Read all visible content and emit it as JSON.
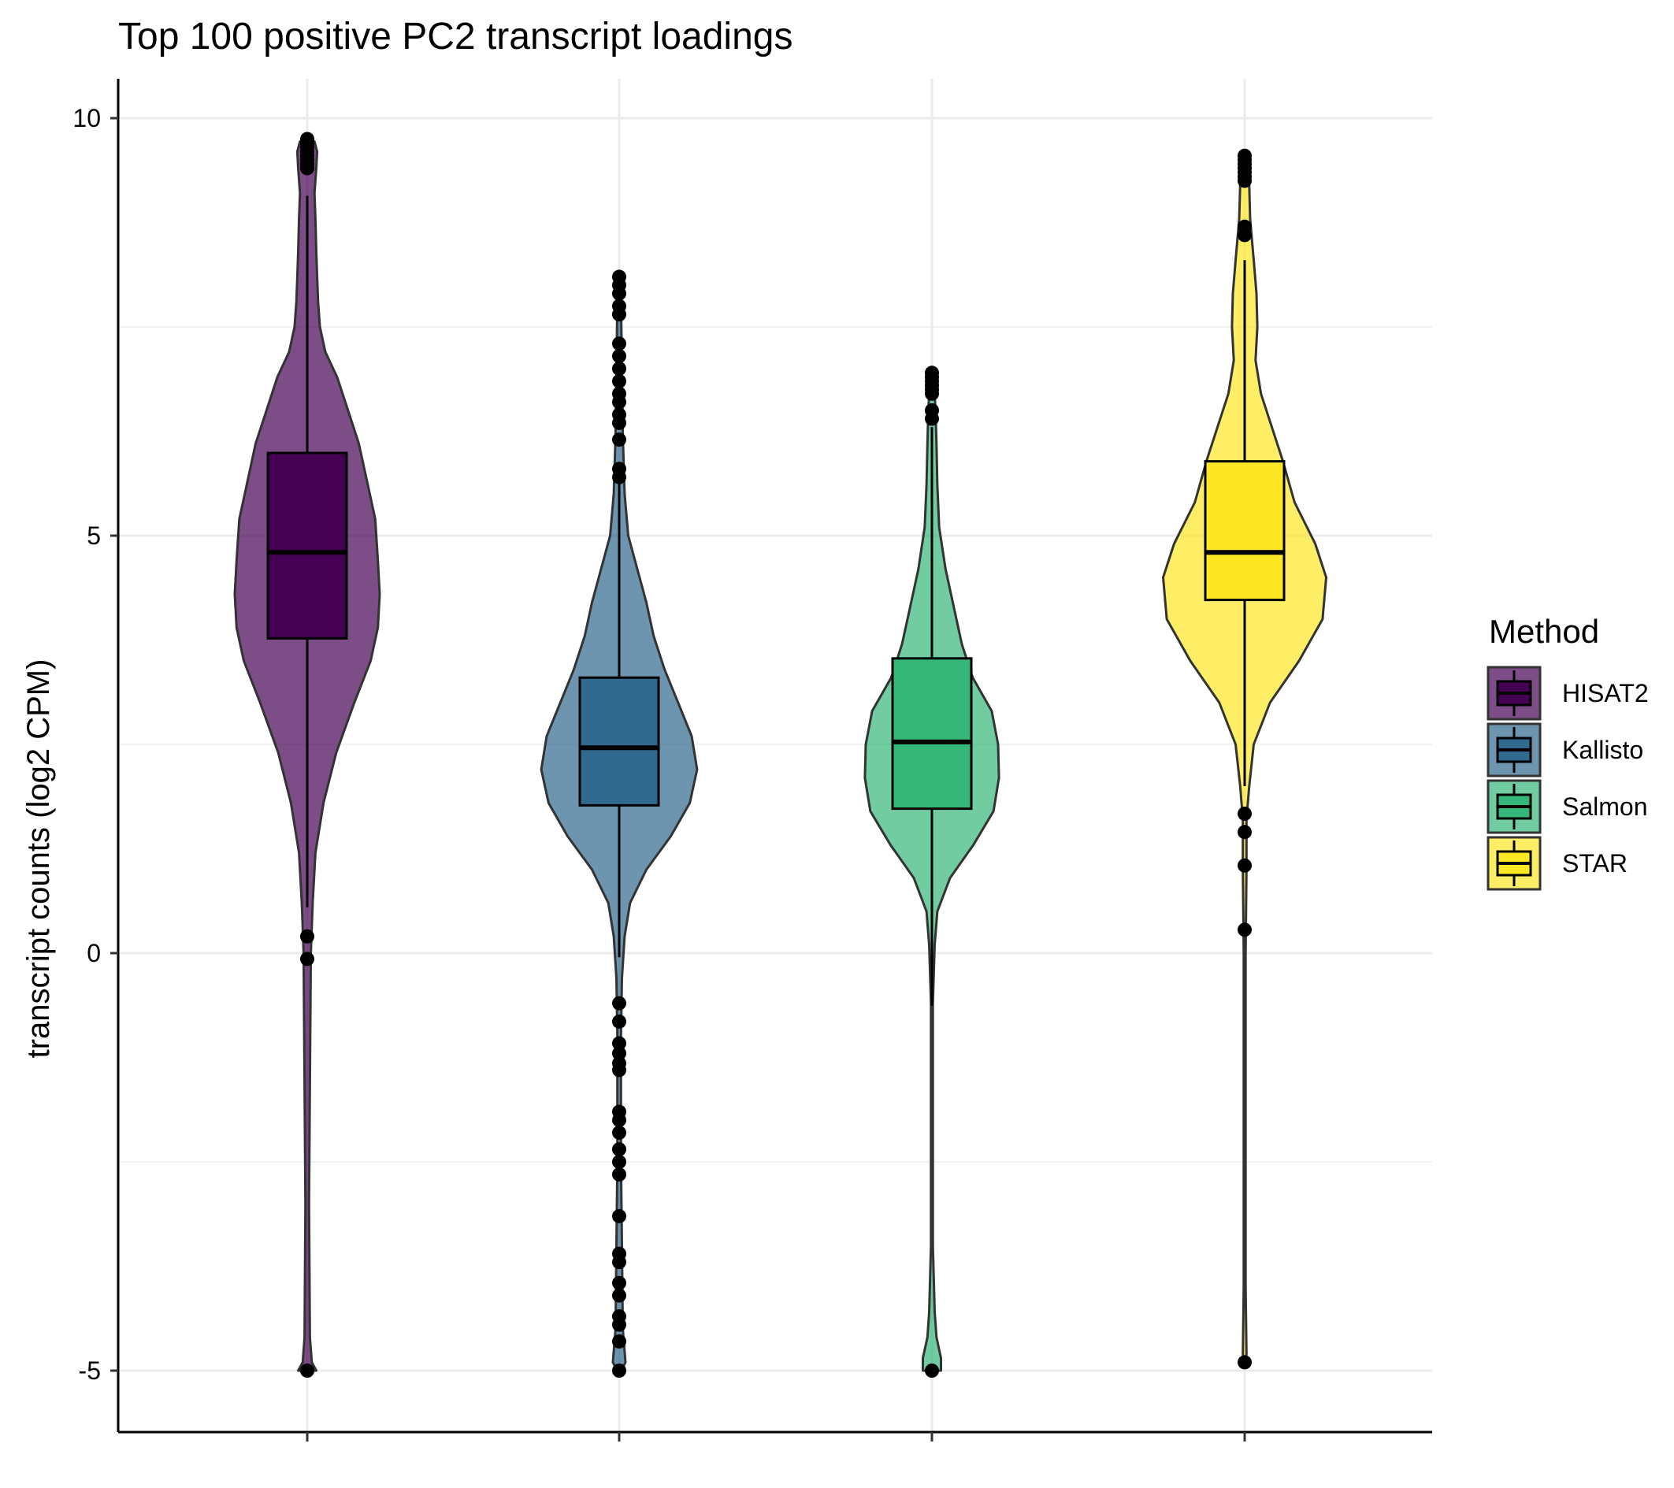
{
  "chart_data": {
    "type": "violin",
    "title": "Top 100 positive PC2 transcript loadings",
    "xlabel": "",
    "ylabel": "transcript counts (log2 CPM)",
    "ylim": [
      -5.8,
      10.5
    ],
    "yticks": [
      -5,
      0,
      5,
      10
    ],
    "ytick_labels": [
      "-5",
      "0",
      "5",
      "10"
    ],
    "grid": true,
    "legend": {
      "title": "Method",
      "position": "right",
      "entries": [
        "HISAT2",
        "Kallisto",
        "Salmon",
        "STAR"
      ]
    },
    "series": [
      {
        "name": "HISAT2",
        "fill": "#440154",
        "box": {
          "q1": 3.77,
          "median": 4.8,
          "q3": 5.99,
          "whisker_low": 0.55,
          "whisker_high": 9.07
        },
        "outliers": [
          9.75,
          9.7,
          9.65,
          9.6,
          9.55,
          9.5,
          9.45,
          9.4,
          0.2,
          -0.07,
          -5.0
        ],
        "density": [
          [
            -5.0,
            0.1
          ],
          [
            -4.9,
            0.05
          ],
          [
            -4.6,
            0.03
          ],
          [
            -3.0,
            0.02
          ],
          [
            0.0,
            0.04
          ],
          [
            0.6,
            0.06
          ],
          [
            1.2,
            0.09
          ],
          [
            1.8,
            0.18
          ],
          [
            2.4,
            0.32
          ],
          [
            3.0,
            0.52
          ],
          [
            3.5,
            0.7
          ],
          [
            3.9,
            0.78
          ],
          [
            4.3,
            0.8
          ],
          [
            4.7,
            0.78
          ],
          [
            5.2,
            0.75
          ],
          [
            5.7,
            0.65
          ],
          [
            6.1,
            0.57
          ],
          [
            6.5,
            0.45
          ],
          [
            6.9,
            0.33
          ],
          [
            7.2,
            0.2
          ],
          [
            7.5,
            0.14
          ],
          [
            7.8,
            0.12
          ],
          [
            8.1,
            0.11
          ],
          [
            8.4,
            0.1
          ],
          [
            8.8,
            0.09
          ],
          [
            9.1,
            0.08
          ],
          [
            9.4,
            0.1
          ],
          [
            9.6,
            0.11
          ],
          [
            9.72,
            0.08
          ],
          [
            9.77,
            0.0
          ]
        ]
      },
      {
        "name": "Kallisto",
        "fill": "#31688e",
        "box": {
          "q1": 1.77,
          "median": 2.46,
          "q3": 3.3,
          "whisker_low": -0.05,
          "whisker_high": 5.65
        },
        "outliers": [
          8.1,
          8.0,
          7.9,
          7.75,
          7.65,
          7.3,
          7.15,
          7.0,
          6.85,
          6.7,
          6.6,
          6.45,
          6.35,
          6.15,
          5.8,
          5.7,
          -0.6,
          -0.82,
          -1.08,
          -1.2,
          -1.32,
          -1.4,
          -1.9,
          -2.0,
          -2.15,
          -2.35,
          -2.5,
          -2.65,
          -3.15,
          -3.6,
          -3.7,
          -3.95,
          -4.1,
          -4.35,
          -4.45,
          -4.65,
          -5.0
        ],
        "density": [
          [
            -5.05,
            0.0
          ],
          [
            -4.9,
            0.07
          ],
          [
            -4.5,
            0.04
          ],
          [
            -3.5,
            0.03
          ],
          [
            -2.5,
            0.02
          ],
          [
            -1.0,
            0.02
          ],
          [
            -0.3,
            0.03
          ],
          [
            0.2,
            0.06
          ],
          [
            0.6,
            0.12
          ],
          [
            1.0,
            0.3
          ],
          [
            1.4,
            0.57
          ],
          [
            1.8,
            0.78
          ],
          [
            2.2,
            0.86
          ],
          [
            2.6,
            0.8
          ],
          [
            3.0,
            0.65
          ],
          [
            3.4,
            0.5
          ],
          [
            3.8,
            0.38
          ],
          [
            4.2,
            0.3
          ],
          [
            4.6,
            0.2
          ],
          [
            5.0,
            0.1
          ],
          [
            5.5,
            0.06
          ],
          [
            6.2,
            0.04
          ],
          [
            7.0,
            0.03
          ],
          [
            7.8,
            0.02
          ],
          [
            8.1,
            0.0
          ]
        ]
      },
      {
        "name": "Salmon",
        "fill": "#35b779",
        "box": {
          "q1": 1.73,
          "median": 2.53,
          "q3": 3.53,
          "whisker_low": -0.63,
          "whisker_high": 6.3
        },
        "outliers": [
          6.95,
          6.9,
          6.85,
          6.8,
          6.75,
          6.7,
          6.5,
          6.4,
          -5.0
        ],
        "density": [
          [
            -5.0,
            0.1
          ],
          [
            -4.85,
            0.1
          ],
          [
            -4.6,
            0.05
          ],
          [
            -4.3,
            0.03
          ],
          [
            -3.5,
            0.01
          ],
          [
            -1.5,
            0.01
          ],
          [
            -0.6,
            0.01
          ],
          [
            0.1,
            0.03
          ],
          [
            0.5,
            0.06
          ],
          [
            0.9,
            0.2
          ],
          [
            1.3,
            0.46
          ],
          [
            1.7,
            0.68
          ],
          [
            2.1,
            0.74
          ],
          [
            2.5,
            0.73
          ],
          [
            2.9,
            0.66
          ],
          [
            3.3,
            0.45
          ],
          [
            3.7,
            0.33
          ],
          [
            4.1,
            0.25
          ],
          [
            4.6,
            0.15
          ],
          [
            5.1,
            0.08
          ],
          [
            5.6,
            0.06
          ],
          [
            6.1,
            0.05
          ],
          [
            6.5,
            0.04
          ],
          [
            6.9,
            0.02
          ],
          [
            7.0,
            0.0
          ]
        ]
      },
      {
        "name": "STAR",
        "fill": "#fde725",
        "box": {
          "q1": 4.23,
          "median": 4.8,
          "q3": 5.89,
          "whisker_low": 2.0,
          "whisker_high": 8.3
        },
        "outliers": [
          9.55,
          9.5,
          9.45,
          9.4,
          9.35,
          9.3,
          9.25,
          8.7,
          8.6,
          1.67,
          1.45,
          1.05,
          0.28,
          -4.9
        ],
        "density": [
          [
            -4.95,
            0.0
          ],
          [
            -4.8,
            0.02
          ],
          [
            -4.0,
            0.01
          ],
          [
            -2.0,
            0.01
          ],
          [
            0.0,
            0.01
          ],
          [
            1.0,
            0.02
          ],
          [
            1.6,
            0.02
          ],
          [
            2.0,
            0.05
          ],
          [
            2.5,
            0.1
          ],
          [
            3.0,
            0.28
          ],
          [
            3.5,
            0.6
          ],
          [
            4.0,
            0.86
          ],
          [
            4.5,
            0.9
          ],
          [
            4.9,
            0.78
          ],
          [
            5.4,
            0.55
          ],
          [
            5.9,
            0.42
          ],
          [
            6.3,
            0.3
          ],
          [
            6.7,
            0.18
          ],
          [
            7.1,
            0.12
          ],
          [
            7.5,
            0.14
          ],
          [
            7.9,
            0.13
          ],
          [
            8.3,
            0.1
          ],
          [
            8.8,
            0.06
          ],
          [
            9.2,
            0.05
          ],
          [
            9.5,
            0.06
          ],
          [
            9.6,
            0.0
          ]
        ]
      }
    ]
  }
}
